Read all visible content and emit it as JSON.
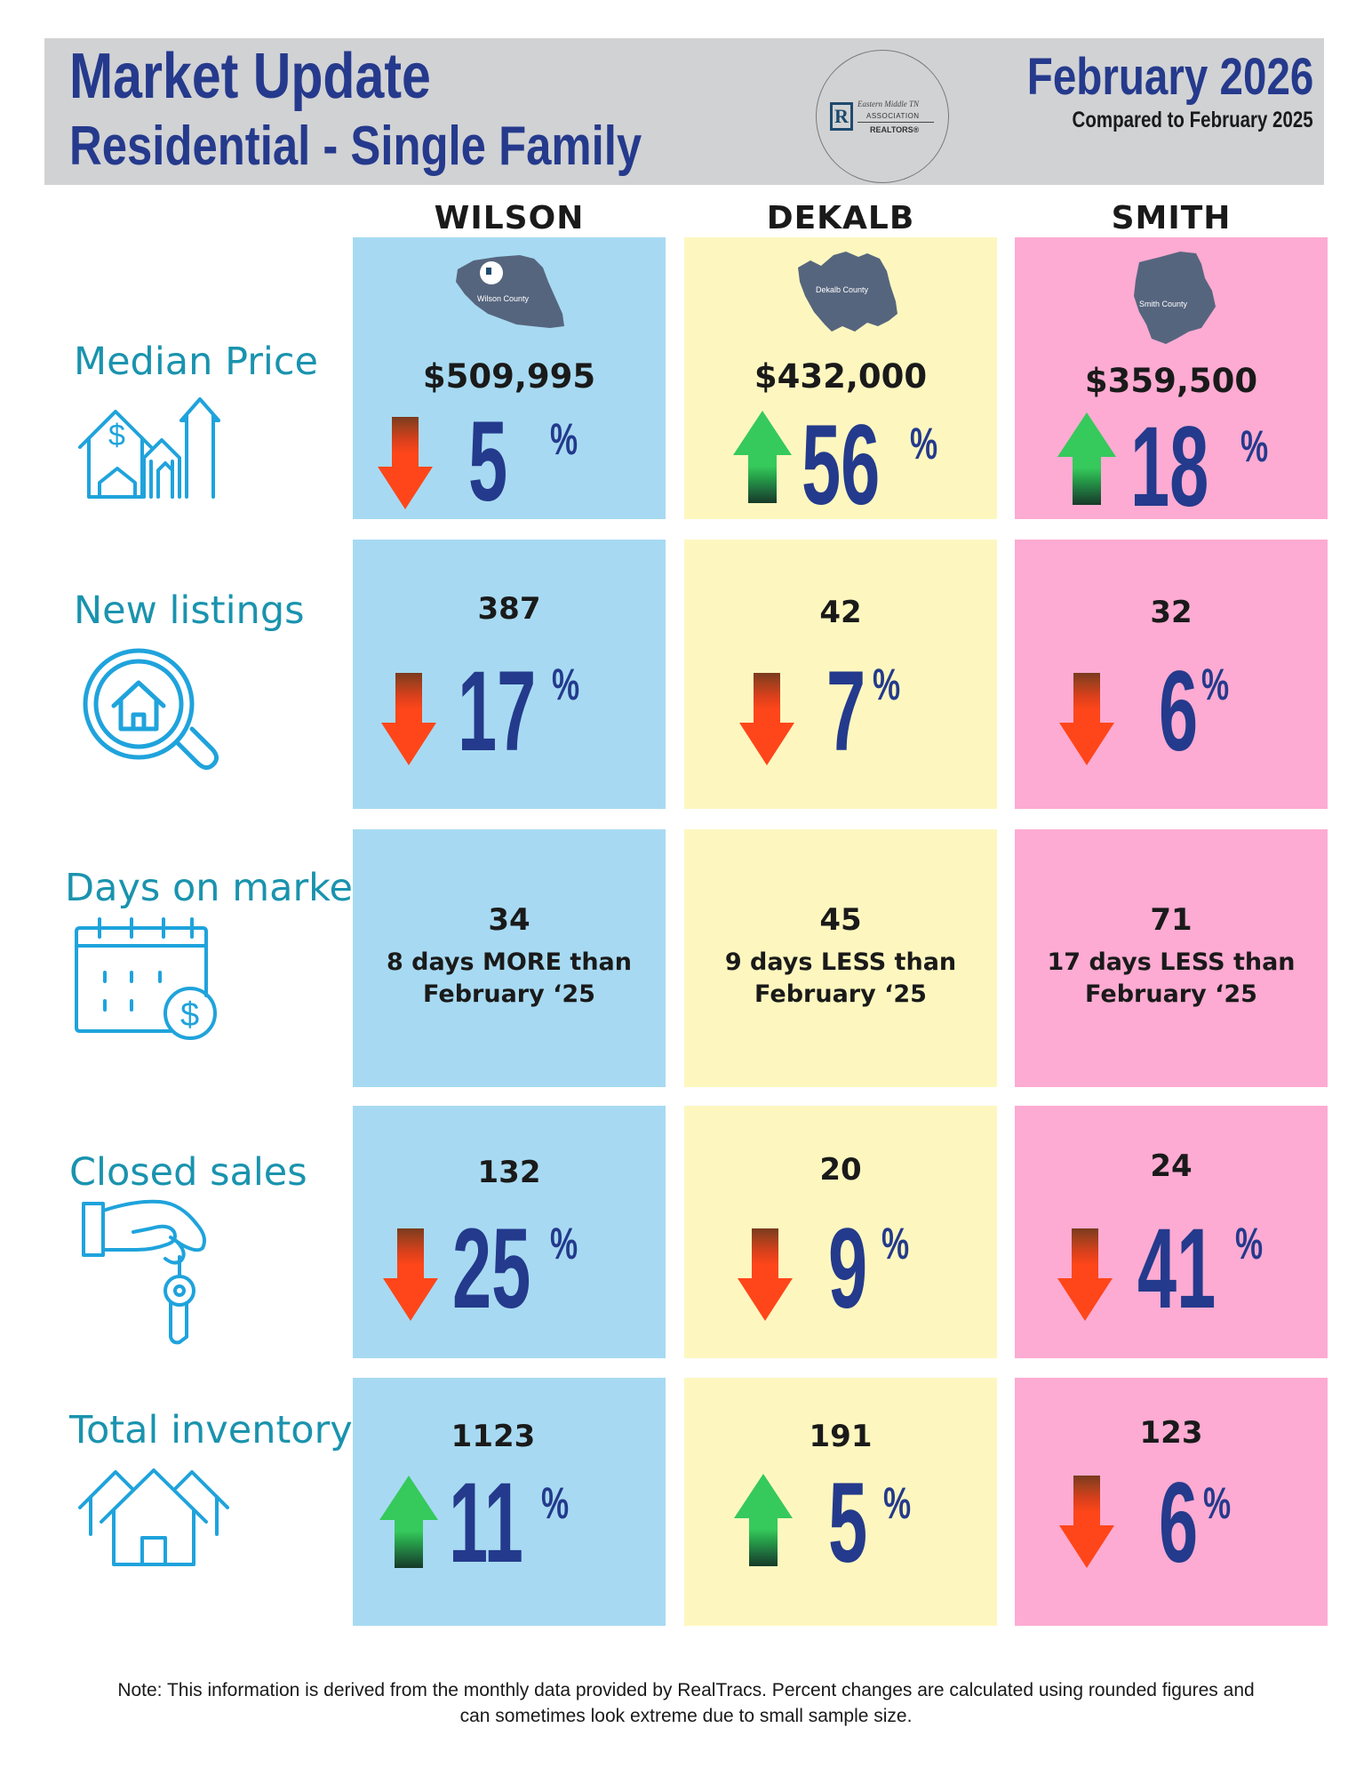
{
  "header": {
    "title_line1": "Market Update",
    "title_line2": "Residential - Single Family",
    "period": "February 2026",
    "comparison": "Compared to February 2025",
    "logo": {
      "letter": "R",
      "line1": "Eastern Middle TN",
      "line2": "ASSOCIATION",
      "line3": "REALTORS®"
    }
  },
  "columns": [
    {
      "name": "WILSON",
      "color": "#a7daf2",
      "map_label": "Wilson County"
    },
    {
      "name": "DEKALB",
      "color": "#fdf7bf",
      "map_label": "Dekalb County"
    },
    {
      "name": "SMITH",
      "color": "#fdabd2",
      "map_label": "Smith County"
    }
  ],
  "metrics": {
    "median_price": {
      "label": "Median Price",
      "icon": "house-price-growth-icon",
      "cells": [
        {
          "value": "$509,995",
          "change": "5",
          "direction": "down"
        },
        {
          "value": "$432,000",
          "change": "56",
          "direction": "up"
        },
        {
          "value": "$359,500",
          "change": "18",
          "direction": "up"
        }
      ]
    },
    "new_listings": {
      "label": "New listings",
      "icon": "house-search-icon",
      "cells": [
        {
          "value": "387",
          "change": "17",
          "direction": "down"
        },
        {
          "value": "42",
          "change": "7",
          "direction": "down"
        },
        {
          "value": "32",
          "change": "6",
          "direction": "down"
        }
      ]
    },
    "days_on_market": {
      "label": "Days on market",
      "icon": "calendar-dollar-icon",
      "cells": [
        {
          "value": "34",
          "line1": "8 days MORE than",
          "line2": "February ‘25"
        },
        {
          "value": "45",
          "line1": "9 days LESS than",
          "line2": "February ‘25"
        },
        {
          "value": "71",
          "line1": "17 days LESS than",
          "line2": "February ‘25"
        }
      ]
    },
    "closed_sales": {
      "label": "Closed sales",
      "icon": "hand-key-icon",
      "cells": [
        {
          "value": "132",
          "change": "25",
          "direction": "down"
        },
        {
          "value": "20",
          "change": "9",
          "direction": "down"
        },
        {
          "value": "24",
          "change": "41",
          "direction": "down"
        }
      ]
    },
    "total_inventory": {
      "label": "Total inventory",
      "icon": "houses-icon",
      "cells": [
        {
          "value": "1123",
          "change": "11",
          "direction": "up"
        },
        {
          "value": "191",
          "change": "5",
          "direction": "up"
        },
        {
          "value": "123",
          "change": "6",
          "direction": "down"
        }
      ]
    }
  },
  "percent_symbol": "%",
  "footer": {
    "line1": "Note: This information is derived from the monthly data provided by RealTracs. Percent changes are calculated using rounded figures and",
    "line2": "can sometimes look extreme due to small sample size."
  }
}
